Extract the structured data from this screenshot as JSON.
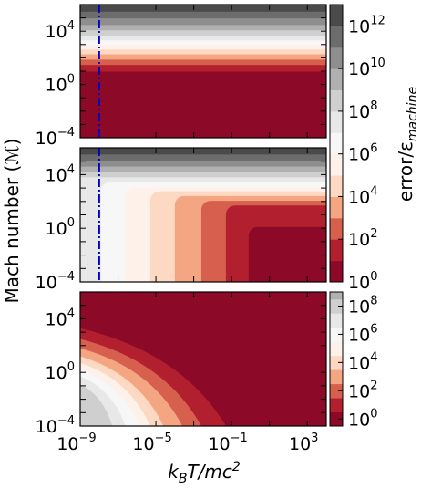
{
  "chart_data": [
    {
      "type": "heatmap",
      "panel": "top",
      "x_scale": "log",
      "y_scale": "log",
      "xlim": [
        1e-09,
        10000.0
      ],
      "ylim": [
        0.0001,
        1000000.0
      ],
      "yticks": [
        {
          "v": 4,
          "t": "10",
          "e": "4"
        },
        {
          "v": 0,
          "t": "10",
          "e": "0"
        },
        {
          "v": -4,
          "t": "10",
          "e": "−4"
        }
      ],
      "vline_x": 1e-08,
      "description": "uniform horizontal bands; error grows with Mach number",
      "bands": [
        {
          "y_lo": -4.0,
          "y_hi": 1.0,
          "level": 0
        },
        {
          "y_lo": 1.0,
          "y_hi": 1.5,
          "level": 1
        },
        {
          "y_lo": 1.5,
          "y_hi": 1.9,
          "level": 2
        },
        {
          "y_lo": 1.9,
          "y_hi": 2.3,
          "level": 3
        },
        {
          "y_lo": 2.3,
          "y_hi": 2.65,
          "level": 4
        },
        {
          "y_lo": 2.65,
          "y_hi": 3.0,
          "level": 5
        },
        {
          "y_lo": 3.0,
          "y_hi": 3.35,
          "level": 6
        },
        {
          "y_lo": 3.35,
          "y_hi": 3.7,
          "level": 7
        },
        {
          "y_lo": 3.7,
          "y_hi": 4.1,
          "level": 8
        },
        {
          "y_lo": 4.1,
          "y_hi": 4.5,
          "level": 9
        },
        {
          "y_lo": 4.5,
          "y_hi": 5.0,
          "level": 10
        },
        {
          "y_lo": 5.0,
          "y_hi": 5.5,
          "level": 11
        },
        {
          "y_lo": 5.5,
          "y_hi": 6.0,
          "level": 12
        }
      ]
    },
    {
      "type": "heatmap",
      "panel": "middle",
      "x_scale": "log",
      "y_scale": "log",
      "xlim": [
        1e-09,
        10000.0
      ],
      "ylim": [
        0.0001,
        1000000.0
      ],
      "yticks": [
        {
          "v": 4,
          "t": "10",
          "e": "4"
        },
        {
          "v": 0,
          "t": "10",
          "e": "0"
        },
        {
          "v": -4,
          "t": "10",
          "e": "−4"
        }
      ],
      "vline_x": 1e-08,
      "description": "nested rounded-corner regions; error decreases toward high temperature and low Mach number",
      "corner_regions": [
        {
          "x_start": -9.0,
          "y_top": 6.0,
          "level": 12
        },
        {
          "x_start": -9.0,
          "y_top": 5.5,
          "level": 11
        },
        {
          "x_start": -9.0,
          "y_top": 5.0,
          "level": 10
        },
        {
          "x_start": -9.0,
          "y_top": 4.6,
          "level": 9
        },
        {
          "x_start": -9.0,
          "y_top": 4.2,
          "level": 8
        },
        {
          "x_start": -9.0,
          "y_top": 3.8,
          "level": 7
        },
        {
          "x_start": -7.9,
          "y_top": 3.45,
          "level": 6
        },
        {
          "x_start": -6.6,
          "y_top": 3.05,
          "level": 5
        },
        {
          "x_start": -5.3,
          "y_top": 2.75,
          "level": 4
        },
        {
          "x_start": -4.0,
          "y_top": 2.4,
          "level": 3
        },
        {
          "x_start": -2.6,
          "y_top": 2.05,
          "level": 2
        },
        {
          "x_start": -1.3,
          "y_top": 1.7,
          "level": 1
        },
        {
          "x_start": -0.1,
          "y_top": 0.1,
          "level": 0
        }
      ]
    },
    {
      "type": "heatmap",
      "panel": "bottom",
      "x_scale": "log",
      "y_scale": "log",
      "xlim": [
        1e-09,
        10000.0
      ],
      "ylim": [
        0.0001,
        1000000.0
      ],
      "xticks": [
        {
          "v": -9,
          "t": "10",
          "e": "−9"
        },
        {
          "v": -5,
          "t": "10",
          "e": "−5"
        },
        {
          "v": -1,
          "t": "10",
          "e": "−1"
        },
        {
          "v": 3,
          "t": "10",
          "e": "3"
        }
      ],
      "yticks": [
        {
          "v": 4,
          "t": "10",
          "e": "4"
        },
        {
          "v": 0,
          "t": "10",
          "e": "0"
        },
        {
          "v": -4,
          "t": "10",
          "e": "−4"
        }
      ],
      "description": "diagonal bands; error is largest at low temperature and low Mach number",
      "boundaries": [
        {
          "level": 1,
          "x_at_bottom": -1.3,
          "x_at_top": -9.0,
          "y_at_left": 3.3
        },
        {
          "level": 2,
          "x_at_bottom": -2.6,
          "x_at_top": -9.0,
          "y_at_left": 2.5
        },
        {
          "level": 3,
          "x_at_bottom": -3.6,
          "x_at_top": -9.0,
          "y_at_left": 1.8
        },
        {
          "level": 4,
          "x_at_bottom": -4.6,
          "x_at_top": -9.0,
          "y_at_left": 1.2
        },
        {
          "level": 5,
          "x_at_bottom": -5.3,
          "x_at_top": -9.0,
          "y_at_left": 0.7
        },
        {
          "level": 6,
          "x_at_bottom": -5.9,
          "x_at_top": -9.0,
          "y_at_left": 0.2
        },
        {
          "level": 7,
          "x_at_bottom": -6.6,
          "x_at_top": -9.0,
          "y_at_left": -0.3
        },
        {
          "level": 8,
          "x_at_bottom": -7.3,
          "x_at_top": -9.0,
          "y_at_left": -0.9
        }
      ]
    }
  ],
  "xlabel": {
    "base": "k",
    "sub": "B",
    "rest": "T/mc",
    "sup": "2"
  },
  "ylabel": {
    "base": "Mach number (",
    "script": "ℳ",
    "close": ")"
  },
  "colorbars": [
    {
      "label": {
        "base": "error/ε",
        "sub": "machine"
      },
      "range": [
        0,
        13
      ],
      "ticks": [
        {
          "v": 0,
          "t": "10",
          "e": "0"
        },
        {
          "v": 2,
          "t": "10",
          "e": "2"
        },
        {
          "v": 4,
          "t": "10",
          "e": "4"
        },
        {
          "v": 6,
          "t": "10",
          "e": "6"
        },
        {
          "v": 8,
          "t": "10",
          "e": "8"
        },
        {
          "v": 10,
          "t": "10",
          "e": "10"
        },
        {
          "v": 12,
          "t": "10",
          "e": "12"
        }
      ]
    },
    {
      "range": [
        -0.5,
        9
      ],
      "ticks": [
        {
          "v": 0,
          "t": "10",
          "e": "0"
        },
        {
          "v": 2,
          "t": "10",
          "e": "2"
        },
        {
          "v": 4,
          "t": "10",
          "e": "4"
        },
        {
          "v": 6,
          "t": "10",
          "e": "6"
        },
        {
          "v": 8,
          "t": "10",
          "e": "8"
        }
      ]
    }
  ],
  "colormap": [
    "#8c0a28",
    "#b21f2e",
    "#d6604d",
    "#f4a582",
    "#fdd9c4",
    "#fdf1ea",
    "#f7f7f7",
    "#e8e8e8",
    "#cfcfcf",
    "#b0b0b0",
    "#8e8e8e",
    "#6c6c6c",
    "#4a4a4a",
    "#2e2e2e"
  ],
  "vline_color": "#0000cc"
}
